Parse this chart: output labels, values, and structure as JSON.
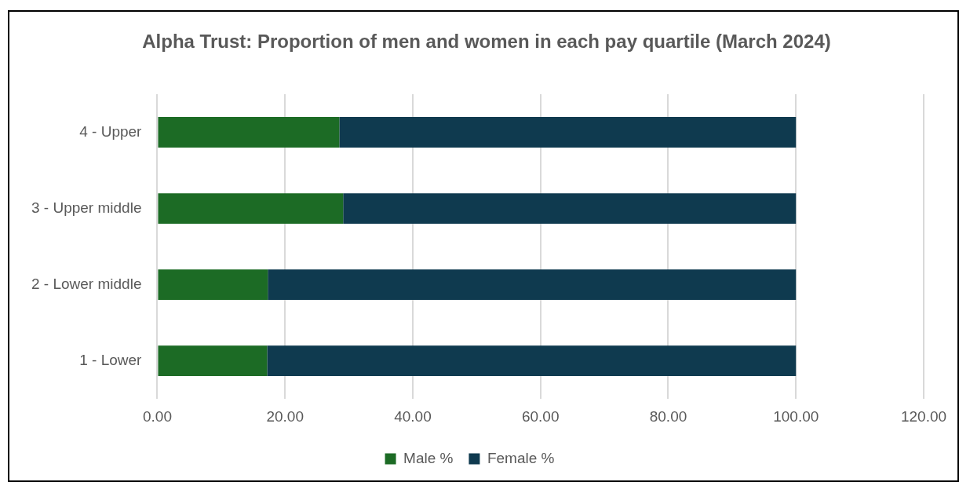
{
  "chart_data": {
    "type": "bar",
    "orientation": "horizontal",
    "stacked": true,
    "title": "Alpha Trust: Proportion of men and women in each pay quartile (March 2024)",
    "categories": [
      "4 - Upper",
      "3 - Upper middle",
      "2 - Lower middle",
      "1 - Lower"
    ],
    "series": [
      {
        "name": "Male %",
        "color": "#1c6b25",
        "values": [
          28.5,
          29.1,
          17.3,
          17.2
        ]
      },
      {
        "name": "Female %",
        "color": "#0f3a4f",
        "values": [
          71.5,
          70.9,
          82.7,
          82.8
        ]
      }
    ],
    "xlim": [
      0,
      120
    ],
    "xticks": [
      {
        "value": 0,
        "label": "0.00"
      },
      {
        "value": 20,
        "label": "20.00"
      },
      {
        "value": 40,
        "label": "40.00"
      },
      {
        "value": 60,
        "label": "60.00"
      },
      {
        "value": 80,
        "label": "80.00"
      },
      {
        "value": 100,
        "label": "100.00"
      },
      {
        "value": 120,
        "label": "120.00"
      }
    ],
    "grid": "x",
    "legend": "bottom"
  }
}
